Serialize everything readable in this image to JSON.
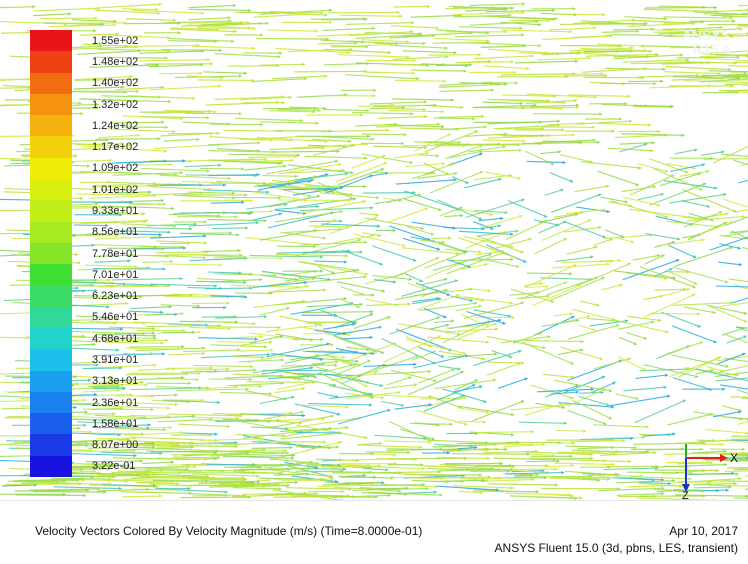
{
  "colormap": {
    "labels": [
      "1.55e+02",
      "1.48e+02",
      "1.40e+02",
      "1.32e+02",
      "1.24e+02",
      "1.17e+02",
      "1.09e+02",
      "1.01e+02",
      "9.33e+01",
      "8.56e+01",
      "7.78e+01",
      "7.01e+01",
      "6.23e+01",
      "5.46e+01",
      "4.68e+01",
      "3.91e+01",
      "3.13e+01",
      "2.36e+01",
      "1.58e+01",
      "8.07e+00",
      "3.22e-01"
    ],
    "colors": [
      "#e8141a",
      "#ee4214",
      "#f26c12",
      "#f59210",
      "#f5b10e",
      "#f3d00c",
      "#f0ec0a",
      "#d8ef10",
      "#c2ee1a",
      "#a8ea22",
      "#86e428",
      "#3ddf32",
      "#3adc66",
      "#30d89a",
      "#22d2cc",
      "#1cc0ec",
      "#1aa0ee",
      "#1a80ee",
      "#1a5eee",
      "#1a3ae8",
      "#1a12e0"
    ]
  },
  "triad": {
    "x_label": "X",
    "z_label": "Z",
    "x_color": "#e02020",
    "y_color": "#20b020",
    "z_color": "#2030d0"
  },
  "caption": {
    "title": "Velocity Vectors Colored By Velocity Magnitude (m/s)  (Time=8.0000e-01)",
    "date": "Apr 10, 2017",
    "solver": "ANSYS Fluent 15.0 (3d, pbns, LES, transient)"
  },
  "logo": {
    "line1": "ANSYS",
    "line2": "R15.0"
  }
}
